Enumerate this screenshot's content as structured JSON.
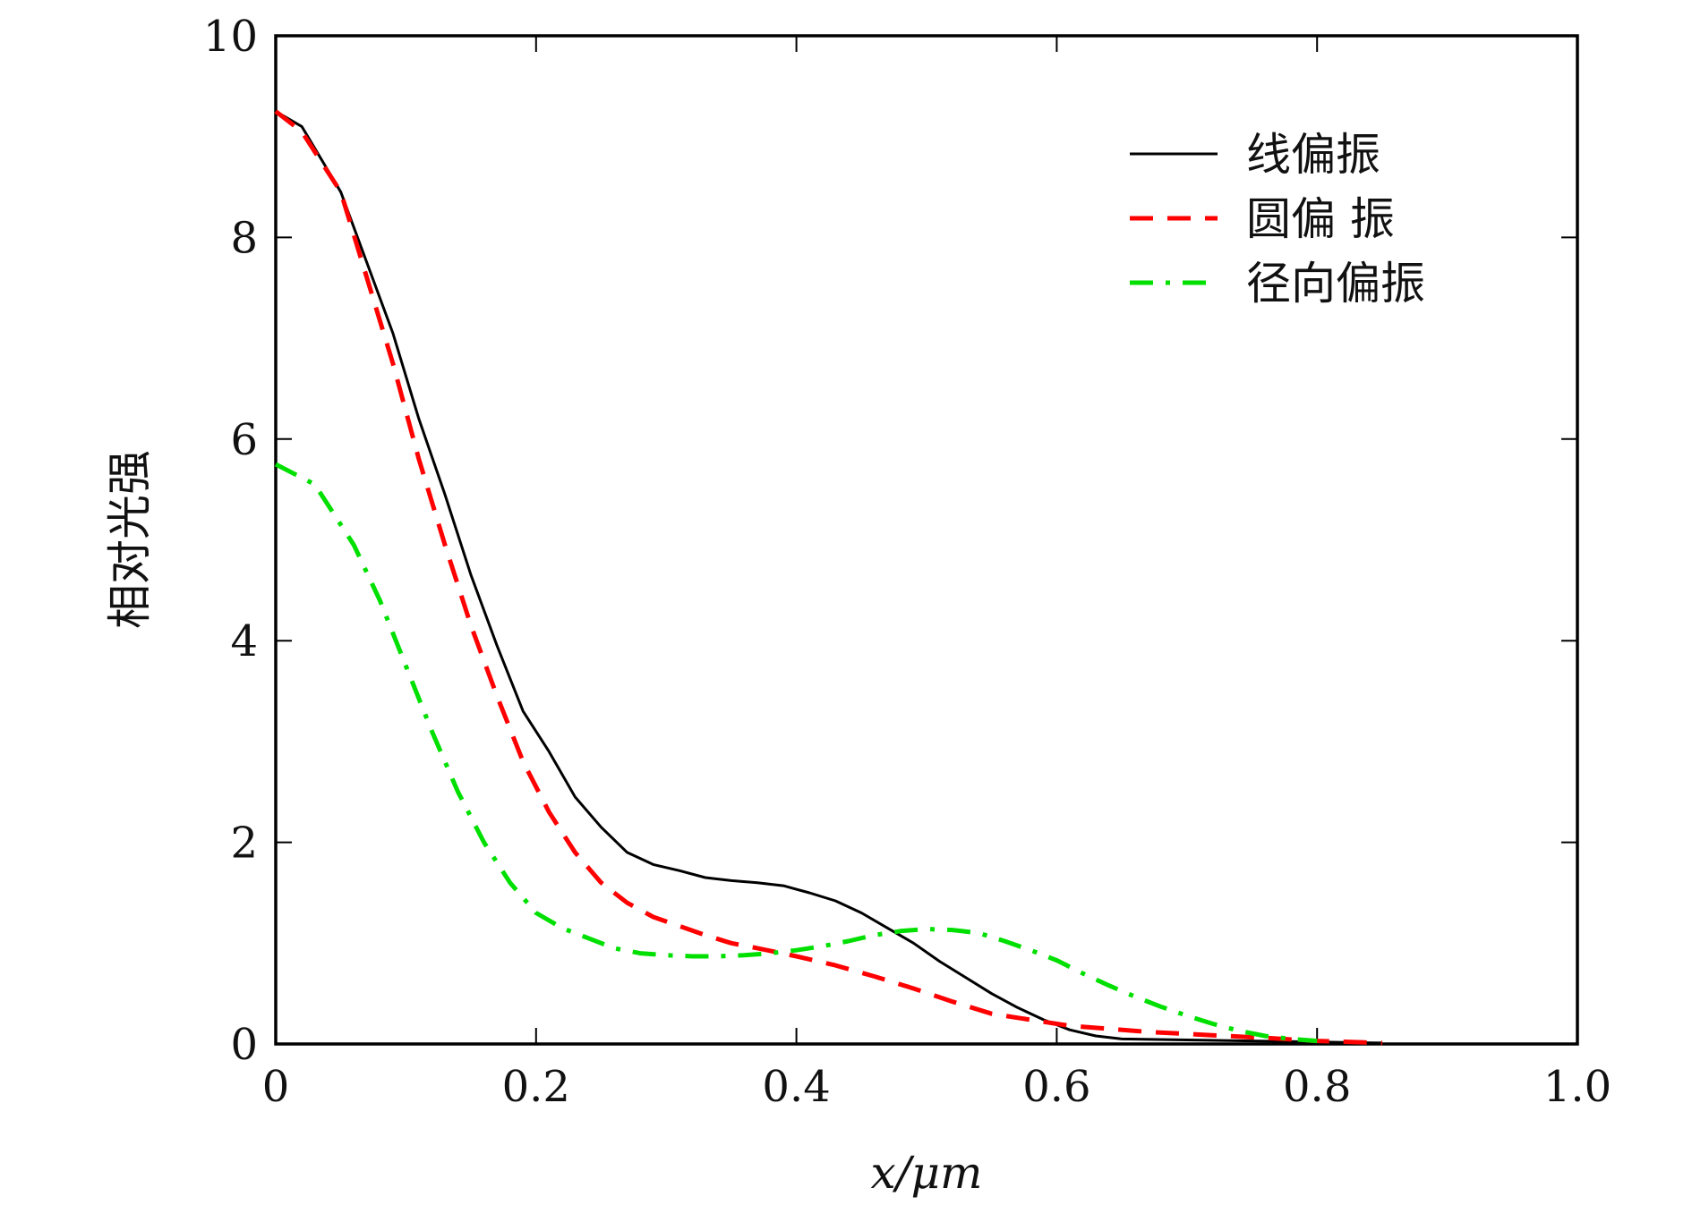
{
  "chart_data": {
    "type": "line",
    "title": "",
    "xlabel": "x/μm",
    "ylabel": "相对光强",
    "xlim": [
      0,
      1.0
    ],
    "ylim": [
      0,
      10
    ],
    "x_ticks": [
      "0",
      "0.2",
      "0.4",
      "0.6",
      "0.8",
      "1.0"
    ],
    "x_tick_values": [
      0,
      0.2,
      0.4,
      0.6,
      0.8,
      1.0
    ],
    "y_ticks": [
      "0",
      "2",
      "4",
      "6",
      "8",
      "10"
    ],
    "y_tick_values": [
      0,
      2,
      4,
      6,
      8,
      10
    ],
    "grid": false,
    "legend_position": "top-right",
    "series": [
      {
        "name": "线偏振",
        "color": "#000000",
        "style": "solid",
        "x": [
          0,
          0.02,
          0.05,
          0.07,
          0.09,
          0.11,
          0.13,
          0.15,
          0.17,
          0.19,
          0.21,
          0.23,
          0.25,
          0.27,
          0.29,
          0.31,
          0.33,
          0.35,
          0.37,
          0.39,
          0.41,
          0.43,
          0.45,
          0.47,
          0.49,
          0.51,
          0.53,
          0.55,
          0.57,
          0.59,
          0.61,
          0.63,
          0.65,
          0.7,
          0.75,
          0.8,
          0.85
        ],
        "y": [
          9.25,
          9.1,
          8.45,
          7.75,
          7.05,
          6.2,
          5.45,
          4.65,
          3.95,
          3.3,
          2.9,
          2.45,
          2.15,
          1.9,
          1.78,
          1.72,
          1.65,
          1.62,
          1.6,
          1.57,
          1.5,
          1.42,
          1.3,
          1.15,
          1.0,
          0.82,
          0.66,
          0.5,
          0.36,
          0.24,
          0.14,
          0.08,
          0.05,
          0.04,
          0.03,
          0.02,
          0.01
        ]
      },
      {
        "name": "圆偏 振",
        "color": "#ff0000",
        "style": "dashed",
        "x": [
          0,
          0.02,
          0.05,
          0.07,
          0.09,
          0.11,
          0.13,
          0.15,
          0.17,
          0.19,
          0.21,
          0.23,
          0.25,
          0.27,
          0.29,
          0.31,
          0.33,
          0.35,
          0.37,
          0.4,
          0.43,
          0.46,
          0.49,
          0.52,
          0.55,
          0.58,
          0.61,
          0.64,
          0.67,
          0.7,
          0.73,
          0.76,
          0.8,
          0.85
        ],
        "y": [
          9.25,
          9.05,
          8.45,
          7.6,
          6.75,
          5.8,
          4.95,
          4.15,
          3.45,
          2.8,
          2.3,
          1.9,
          1.6,
          1.4,
          1.26,
          1.17,
          1.08,
          1.0,
          0.95,
          0.87,
          0.78,
          0.67,
          0.55,
          0.42,
          0.3,
          0.24,
          0.18,
          0.15,
          0.12,
          0.1,
          0.08,
          0.06,
          0.03,
          0.01
        ]
      },
      {
        "name": "径向偏振",
        "color": "#00e000",
        "style": "dashdot",
        "x": [
          0,
          0.03,
          0.06,
          0.08,
          0.1,
          0.12,
          0.14,
          0.16,
          0.18,
          0.2,
          0.22,
          0.24,
          0.26,
          0.28,
          0.3,
          0.32,
          0.34,
          0.36,
          0.38,
          0.4,
          0.42,
          0.44,
          0.46,
          0.48,
          0.5,
          0.52,
          0.54,
          0.56,
          0.58,
          0.6,
          0.62,
          0.64,
          0.66,
          0.68,
          0.7,
          0.72,
          0.74,
          0.76,
          0.78,
          0.8
        ],
        "y": [
          5.75,
          5.55,
          4.95,
          4.4,
          3.75,
          3.1,
          2.5,
          2.0,
          1.6,
          1.3,
          1.15,
          1.05,
          0.95,
          0.9,
          0.88,
          0.87,
          0.87,
          0.88,
          0.9,
          0.93,
          0.97,
          1.02,
          1.08,
          1.12,
          1.14,
          1.13,
          1.1,
          1.02,
          0.93,
          0.83,
          0.7,
          0.58,
          0.47,
          0.37,
          0.28,
          0.2,
          0.13,
          0.08,
          0.05,
          0.03
        ]
      }
    ]
  }
}
